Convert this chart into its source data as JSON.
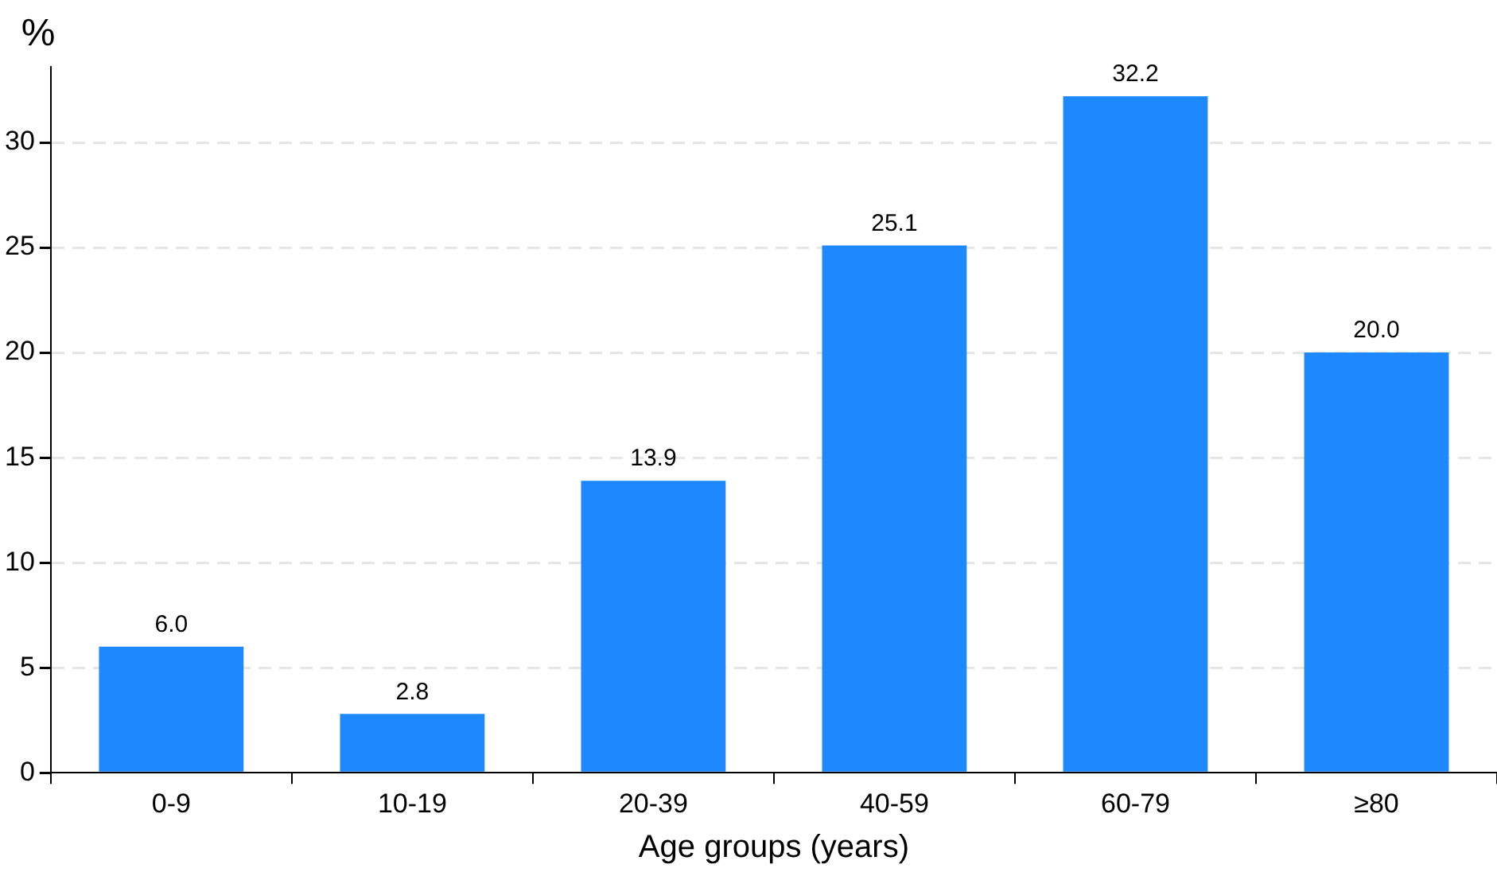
{
  "chart_data": {
    "type": "bar",
    "xlabel": "Age groups (years)",
    "ylabel": "%",
    "categories": [
      "0-9",
      "10-19",
      "20-39",
      "40-59",
      "60-79",
      "≥80"
    ],
    "values": [
      6.0,
      2.8,
      13.9,
      25.1,
      32.2,
      20.0
    ],
    "color": "#1e88ff",
    "ylim": [
      0,
      33.6
    ],
    "yticks": [
      0,
      5,
      10,
      15,
      20,
      25,
      30
    ],
    "value_labels": [
      "6.0",
      "2.8",
      "13.9",
      "25.1",
      "32.2",
      "20.0"
    ],
    "grid": "y",
    "legend": false
  }
}
